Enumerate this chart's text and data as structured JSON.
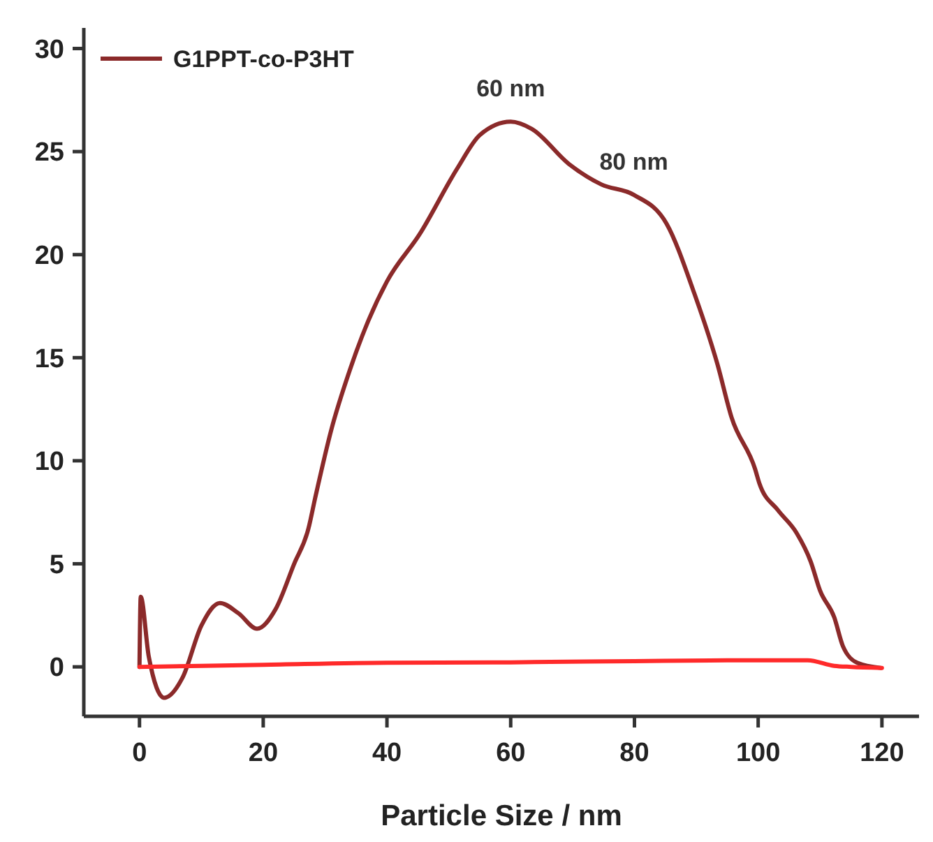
{
  "chart_data": {
    "type": "line",
    "xlabel": "Particle Size / nm",
    "xlim": [
      -9,
      126
    ],
    "ylim": [
      -2.4,
      31
    ],
    "xticks": [
      0,
      20,
      40,
      60,
      80,
      100,
      120
    ],
    "yticks": [
      0,
      5,
      10,
      15,
      20,
      25,
      30
    ],
    "legend": "top left",
    "grid": false,
    "annotations": [
      {
        "text": "60 nm",
        "x": 60,
        "y": 26.45
      },
      {
        "text": "80 nm",
        "x": 79.9,
        "y": 22.9
      }
    ],
    "series": [
      {
        "name": "G1PPT-co-P3HT",
        "color": "#8b2a2a",
        "x": [
          0,
          0.2,
          1.5,
          4,
          7,
          10,
          13,
          16,
          19,
          22,
          25,
          27.3,
          28.4,
          31,
          34,
          37,
          40,
          45.3,
          51.4,
          55,
          60,
          63.4,
          69.4,
          74.7,
          79.9,
          85.2,
          89.7,
          93.4,
          95.7,
          99.5,
          100.2,
          103.2,
          106.2,
          108.5,
          110,
          112.3,
          113.7,
          116,
          119.8
        ],
        "values": [
          0,
          3.4,
          0.5,
          -1.5,
          -0.5,
          2,
          3.1,
          2.6,
          1.85,
          2.8,
          5,
          6.7,
          8.2,
          11.5,
          14.4,
          16.8,
          18.7,
          21,
          24.2,
          25.8,
          26.45,
          26.1,
          24.4,
          23.4,
          22.9,
          21.5,
          18.1,
          14.7,
          12.1,
          9.6,
          8.9,
          7.6,
          6.5,
          5.1,
          3.7,
          2.4,
          1.0,
          0.2,
          -0.05
        ]
      },
      {
        "color": "#ff2a2a",
        "x": [
          0,
          20,
          40,
          60,
          80,
          95,
          108,
          112.3,
          115,
          120
        ],
        "values": [
          0,
          0.1,
          0.2,
          0.22,
          0.28,
          0.32,
          0.32,
          0.05,
          0,
          -0.05
        ]
      }
    ]
  }
}
